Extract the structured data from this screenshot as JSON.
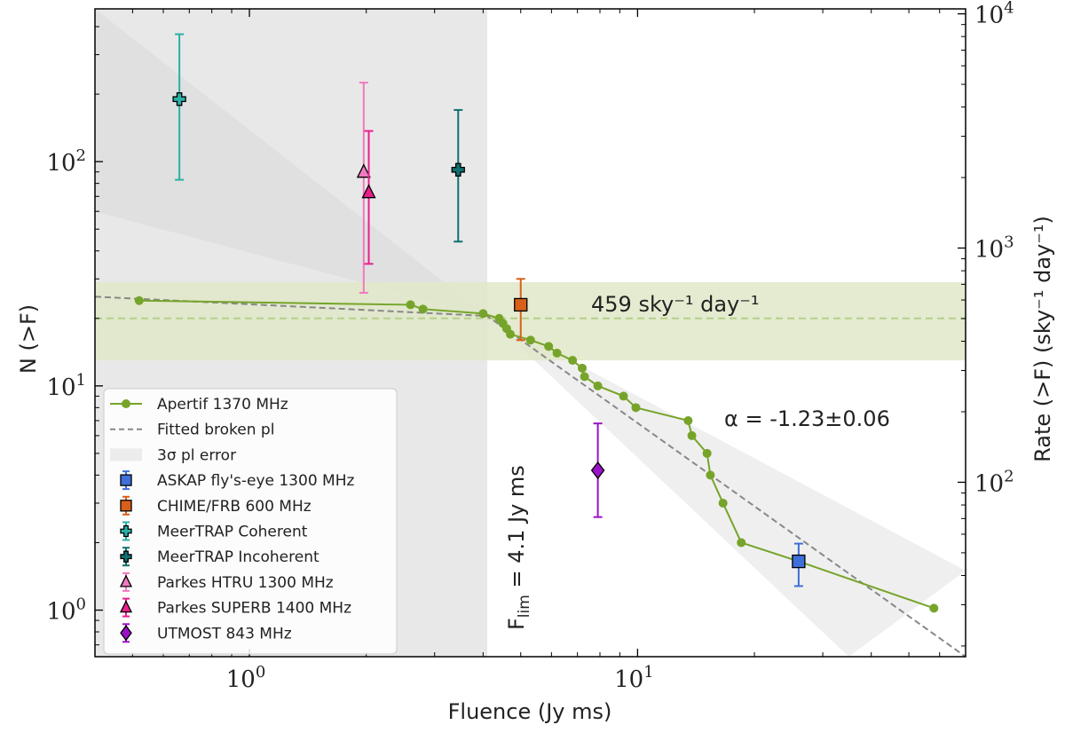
{
  "chart_data": {
    "type": "scatter",
    "xlabel": "Fluence (Jy ms)",
    "ylabel": "N (>F)",
    "ylabel_right": "Rate (>F) (sky⁻¹ day⁻¹)",
    "x_scale": "log",
    "y_scale": "log",
    "xlim": [
      0.4,
      70
    ],
    "ylim": [
      0.62,
      480
    ],
    "right_ylim": [
      18,
      10500
    ],
    "grid": false,
    "legend_position": "lower-left",
    "x_ticks": [
      {
        "value": 1,
        "base": "10",
        "exp": "0"
      },
      {
        "value": 10,
        "base": "10",
        "exp": "1"
      }
    ],
    "y_ticks": [
      {
        "value": 1,
        "base": "10",
        "exp": "0"
      },
      {
        "value": 10,
        "base": "10",
        "exp": "1"
      },
      {
        "value": 100,
        "base": "10",
        "exp": "2"
      }
    ],
    "right_ticks": [
      {
        "value": 100,
        "base": "10",
        "exp": "2"
      },
      {
        "value": 1000,
        "base": "10",
        "exp": "3"
      },
      {
        "value": 10000,
        "base": "10",
        "exp": "4"
      }
    ],
    "shaded_region": {
      "x_max": 4.1,
      "color": "#e8e8e8"
    },
    "rate_band": {
      "center": 459,
      "low": 300,
      "high": 690,
      "y_center": 20,
      "y_low": 13,
      "y_high": 29,
      "color": "#dfe8c8",
      "line_color": "#b8cf8a"
    },
    "series": [
      {
        "name": "Apertif 1370 MHz",
        "marker": "dot",
        "color": "#76a42a",
        "points": [
          [
            0.52,
            24
          ],
          [
            2.6,
            23
          ],
          [
            2.8,
            22
          ],
          [
            4.0,
            21
          ],
          [
            4.4,
            20
          ],
          [
            4.5,
            19
          ],
          [
            4.6,
            18
          ],
          [
            4.7,
            17
          ],
          [
            5.3,
            16
          ],
          [
            5.9,
            15
          ],
          [
            6.2,
            14
          ],
          [
            6.8,
            13
          ],
          [
            7.2,
            12
          ],
          [
            7.3,
            11
          ],
          [
            7.9,
            10
          ],
          [
            9.2,
            9
          ],
          [
            9.9,
            8
          ],
          [
            13.5,
            7
          ],
          [
            13.8,
            6
          ],
          [
            15.1,
            5
          ],
          [
            15.4,
            4
          ],
          [
            16.6,
            3
          ],
          [
            18.5,
            2
          ],
          [
            26,
            1.65
          ],
          [
            58,
            1.02
          ]
        ]
      },
      {
        "name": "ASKAP fly's-eye 1300 MHz",
        "marker": "square",
        "color": "#3f6fd8",
        "points": [
          [
            26,
            1.65,
            1.28,
            1.98
          ]
        ]
      },
      {
        "name": "CHIME/FRB 600 MHz",
        "marker": "square",
        "color": "#d9601b",
        "points": [
          [
            5.0,
            23,
            16,
            30
          ]
        ]
      },
      {
        "name": "MeerTRAP Coherent",
        "marker": "plus",
        "color": "#2ab0a6",
        "points": [
          [
            0.66,
            190,
            83,
            370
          ]
        ]
      },
      {
        "name": "MeerTRAP Incoherent",
        "marker": "plus",
        "color": "#117070",
        "points": [
          [
            3.45,
            92,
            44,
            170
          ]
        ]
      },
      {
        "name": "Parkes HTRU 1300 MHz",
        "marker": "triangle",
        "color": "#f07ac0",
        "points": [
          [
            1.97,
            90,
            26,
            225
          ]
        ]
      },
      {
        "name": "Parkes SUPERB 1400 MHz",
        "marker": "triangle",
        "color": "#e8208a",
        "points": [
          [
            2.03,
            73,
            35,
            137
          ]
        ]
      },
      {
        "name": "UTMOST 843 MHz",
        "marker": "diamond",
        "color": "#9a12c8",
        "points": [
          [
            7.9,
            4.2,
            2.6,
            6.8
          ]
        ]
      }
    ],
    "fit": {
      "name": "Fitted broken pl",
      "color": "#888888",
      "points": [
        [
          0.4,
          25
        ],
        [
          4.1,
          20.5
        ],
        [
          70,
          0.62
        ]
      ]
    },
    "fit_error": {
      "name": "3σ pl error",
      "lower": [
        [
          0.4,
          60
        ],
        [
          4.1,
          20.5
        ],
        [
          35,
          0.62
        ]
      ],
      "upper": [
        [
          0.4,
          480
        ],
        [
          4.1,
          20.5
        ],
        [
          70,
          1.5
        ]
      ],
      "color": "#d0d0d0"
    },
    "annotations": {
      "rate": "459 sky⁻¹ day⁻¹",
      "alpha": "α = -1.23±0.06",
      "flim": "F",
      "flim_sub": "lim",
      "flim_rest": " = 4.1 Jy ms"
    }
  }
}
